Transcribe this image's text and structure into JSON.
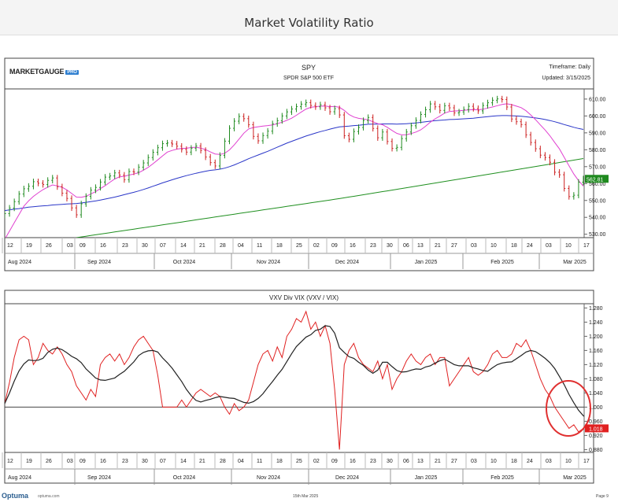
{
  "page_title": "Market Volatility Ratio",
  "logo": {
    "text": "MARKETGAUGE",
    "badge": "PRO"
  },
  "footer": {
    "brand": "Optuma",
    "url": "optuma.com",
    "date": "15th Mar 2025",
    "page": "Page 9"
  },
  "chart_data": [
    {
      "type": "ohlc",
      "title": "SPY",
      "subtitle": "SPDR S&P 500 ETF",
      "timeframe": "Timeframe: Daily",
      "updated": "Updated: 3/15/2025",
      "last_value_label": "562.81",
      "ylim": [
        528,
        616
      ],
      "y_ticks": [
        610,
        600,
        590,
        580,
        570,
        560,
        550,
        540,
        530
      ],
      "y_tick_labels": [
        "610.00",
        "600.00",
        "590.00",
        "580.00",
        "570.00",
        "560.00",
        "550.00",
        "540.00",
        "530.00"
      ],
      "close": [
        542.2,
        545.5,
        549.3,
        553.8,
        556.9,
        558.4,
        561.1,
        560.2,
        559.4,
        561.9,
        563.3,
        558.1,
        554.3,
        551.2,
        545.6,
        541.5,
        548.0,
        552.4,
        556.1,
        557.7,
        560.9,
        563.8,
        564.5,
        566.3,
        565.0,
        562.3,
        567.1,
        566.8,
        569.7,
        572.2,
        575.4,
        578.5,
        581.2,
        583.6,
        584.0,
        583.4,
        582.1,
        580.2,
        578.6,
        580.9,
        582.2,
        579.6,
        575.7,
        572.4,
        570.4,
        576.7,
        585.1,
        592.7,
        596.9,
        599.7,
        598.4,
        594.8,
        587.9,
        585.3,
        588.4,
        591.0,
        595.4,
        597.2,
        600.0,
        602.4,
        604.1,
        605.5,
        607.0,
        607.9,
        606.2,
        605.4,
        606.6,
        604.8,
        602.5,
        604.3,
        600.6,
        588.3,
        586.2,
        590.8,
        593.2,
        597.3,
        599.1,
        592.6,
        587.1,
        590.5,
        584.9,
        580.8,
        581.4,
        586.6,
        590.5,
        594.2,
        597.4,
        600.9,
        603.7,
        607.1,
        605.4,
        603.3,
        606.0,
        604.8,
        601.8,
        602.4,
        603.8,
        605.7,
        604.4,
        603.0,
        606.2,
        607.8,
        609.3,
        610.1,
        609.7,
        605.3,
        598.2,
        596.6,
        594.9,
        588.8,
        584.3,
        580.6,
        576.8,
        575.4,
        572.6,
        566.7,
        565.2,
        557.1,
        552.3,
        553.1,
        560.8,
        562.8
      ],
      "sma_fast": [
        527.0,
        531.9,
        536.8,
        541.7,
        546.6,
        549.8,
        552.4,
        554.5,
        556.4,
        557.9,
        559.2,
        558.6,
        557.8,
        556.2,
        554.1,
        552.0,
        551.9,
        552.5,
        553.8,
        555.2,
        557.0,
        558.8,
        560.8,
        562.7,
        564.0,
        564.3,
        565.0,
        565.6,
        566.4,
        567.9,
        569.6,
        571.7,
        574.0,
        576.4,
        578.6,
        579.6,
        580.4,
        580.8,
        580.9,
        581.3,
        581.5,
        581.0,
        580.1,
        578.7,
        577.5,
        577.2,
        577.9,
        579.9,
        582.9,
        586.3,
        589.8,
        592.3,
        593.2,
        593.6,
        594.0,
        594.3,
        594.7,
        595.4,
        596.3,
        597.4,
        598.7,
        600.4,
        602.3,
        604.1,
        605.1,
        605.5,
        605.8,
        605.9,
        605.5,
        605.6,
        605.1,
        603.3,
        600.8,
        599.4,
        598.6,
        598.2,
        597.7,
        596.6,
        595.4,
        594.8,
        593.3,
        591.4,
        589.7,
        588.8,
        588.9,
        589.6,
        590.5,
        591.8,
        593.9,
        596.3,
        598.3,
        599.9,
        601.7,
        602.6,
        602.9,
        603.1,
        603.3,
        603.6,
        603.7,
        603.6,
        604.0,
        604.7,
        605.3,
        606.1,
        606.8,
        607.2,
        606.7,
        605.8,
        604.9,
        603.1,
        600.6,
        597.8,
        594.7,
        591.7,
        588.3,
        584.3,
        580.5,
        575.5,
        570.5,
        565.6,
        561.7,
        558.5
      ],
      "sma_mid": [
        544.0,
        544.4,
        544.9,
        545.2,
        545.6,
        546.0,
        546.3,
        546.6,
        546.8,
        547.0,
        547.3,
        547.5,
        547.7,
        547.9,
        548.0,
        548.2,
        548.5,
        548.9,
        549.3,
        549.7,
        550.2,
        550.8,
        551.4,
        552.0,
        552.7,
        553.4,
        554.1,
        554.8,
        555.6,
        556.5,
        557.4,
        558.4,
        559.4,
        560.4,
        561.3,
        562.2,
        563.1,
        563.9,
        564.7,
        565.4,
        566.1,
        566.7,
        567.3,
        567.8,
        568.1,
        568.5,
        569.1,
        570.0,
        571.0,
        572.2,
        573.4,
        574.7,
        575.8,
        576.9,
        578.0,
        579.1,
        580.3,
        581.5,
        582.7,
        583.9,
        585.0,
        586.0,
        587.1,
        588.1,
        589.0,
        589.9,
        590.7,
        591.4,
        592.2,
        592.9,
        593.5,
        593.8,
        594.0,
        594.3,
        594.5,
        594.8,
        595.1,
        595.2,
        595.2,
        595.3,
        595.3,
        595.3,
        595.2,
        595.3,
        595.4,
        595.6,
        595.9,
        596.2,
        596.6,
        596.9,
        597.2,
        597.4,
        597.6,
        597.9,
        598.0,
        598.1,
        598.3,
        598.5,
        598.7,
        599.0,
        599.3,
        599.6,
        599.9,
        600.1,
        600.2,
        600.2,
        600.1,
        600.0,
        599.8,
        599.5,
        599.2,
        598.8,
        598.4,
        597.9,
        597.3,
        596.6,
        595.8,
        594.9,
        594.1,
        593.3,
        592.6,
        592.0
      ],
      "sma_slow": [
        null,
        null,
        null,
        null,
        null,
        null,
        null,
        null,
        null,
        null,
        null,
        null,
        null,
        null,
        null,
        null,
        null,
        null,
        null,
        null,
        null,
        null,
        null,
        null,
        null,
        null,
        null,
        null,
        null,
        null,
        null,
        null,
        null,
        null,
        null,
        null,
        null,
        null,
        null,
        null,
        null,
        null,
        null,
        null,
        null,
        null,
        null,
        null,
        null,
        null,
        null,
        null,
        null,
        null,
        null,
        null,
        null,
        null,
        null,
        null,
        null,
        null,
        null,
        null,
        null,
        null,
        null,
        null,
        null,
        null,
        null,
        null,
        null,
        null,
        null,
        null,
        null,
        null,
        null,
        null,
        null,
        null,
        null,
        null,
        null,
        null,
        null,
        null,
        null,
        null,
        null,
        null,
        null,
        null,
        null,
        null,
        null,
        null,
        null,
        null,
        null,
        null,
        null,
        null,
        null,
        null,
        null,
        null,
        null,
        null,
        null,
        null,
        null,
        null,
        null,
        null,
        null,
        null,
        null,
        null,
        null,
        null,
        null,
        null
      ]
    },
    {
      "type": "line",
      "title": "VXV Div VIX (VXV / VIX)",
      "last_value_label": "1.018",
      "ylim": [
        0.872,
        1.292
      ],
      "y_ticks": [
        1.28,
        1.24,
        1.2,
        1.16,
        1.12,
        1.08,
        1.04,
        1.0,
        0.96,
        0.92,
        0.88
      ],
      "y_tick_labels": [
        "1.280",
        "1.240",
        "1.200",
        "1.160",
        "1.120",
        "1.080",
        "1.040",
        "1.000",
        "0.960",
        "0.920",
        "0.880"
      ],
      "reference_line": 1.0,
      "ratio": [
        1.01,
        1.07,
        1.14,
        1.19,
        1.2,
        1.19,
        1.12,
        1.14,
        1.18,
        1.16,
        1.15,
        1.17,
        1.15,
        1.12,
        1.1,
        1.06,
        1.04,
        1.02,
        1.05,
        1.03,
        1.12,
        1.14,
        1.15,
        1.13,
        1.15,
        1.12,
        1.14,
        1.17,
        1.19,
        1.2,
        1.18,
        1.16,
        1.09,
        1.0,
        1.0,
        1.0,
        1.0,
        1.02,
        1.0,
        1.02,
        1.04,
        1.05,
        1.04,
        1.03,
        1.04,
        1.03,
        1.0,
        0.98,
        1.01,
        0.99,
        1.0,
        1.02,
        1.07,
        1.12,
        1.15,
        1.16,
        1.13,
        1.17,
        1.14,
        1.2,
        1.22,
        1.25,
        1.24,
        1.27,
        1.22,
        1.24,
        1.2,
        1.23,
        1.18,
        1.05,
        0.88,
        1.12,
        1.16,
        1.18,
        1.14,
        1.12,
        1.11,
        1.1,
        1.13,
        1.08,
        1.12,
        1.05,
        1.08,
        1.1,
        1.13,
        1.15,
        1.13,
        1.12,
        1.14,
        1.15,
        1.12,
        1.14,
        1.14,
        1.06,
        1.08,
        1.1,
        1.12,
        1.14,
        1.1,
        1.09,
        1.1,
        1.12,
        1.15,
        1.16,
        1.14,
        1.14,
        1.15,
        1.18,
        1.17,
        1.19,
        1.16,
        1.12,
        1.08,
        1.05,
        1.03,
        1.0,
        0.98,
        0.96,
        0.94,
        0.95,
        0.93,
        0.94,
        0.97,
        1.02
      ],
      "smooth": [
        null,
        null,
        null,
        null,
        null,
        null,
        null,
        null,
        null,
        null,
        null,
        null,
        null,
        null,
        null,
        null,
        null,
        null,
        null,
        null,
        null,
        null,
        null,
        null,
        null,
        null,
        null,
        null,
        null,
        null,
        null,
        null,
        null,
        null,
        null,
        null,
        null,
        null,
        null,
        null,
        null,
        null,
        null,
        null,
        null,
        null,
        null,
        null,
        null,
        null,
        null,
        null,
        null,
        null,
        null,
        null,
        null,
        null,
        null,
        null,
        null,
        null,
        null,
        null,
        null,
        null,
        null,
        null,
        null,
        null,
        null,
        null,
        null,
        null,
        null,
        null,
        null,
        null,
        null,
        null,
        null,
        null,
        null,
        null,
        null,
        null,
        null,
        null,
        null,
        null,
        null,
        null,
        null,
        null,
        null,
        null,
        null,
        null,
        null,
        null,
        null,
        null,
        null,
        null,
        null,
        null,
        null,
        null,
        null,
        null,
        null,
        null,
        null,
        null,
        null,
        null,
        null,
        null,
        null,
        null,
        null,
        null,
        null,
        null
      ]
    }
  ],
  "x_axis": {
    "day_labels": [
      "12",
      "19",
      "26",
      "03",
      "09",
      "16",
      "23",
      "30",
      "07",
      "14",
      "21",
      "28",
      "04",
      "11",
      "18",
      "25",
      "02",
      "09",
      "16",
      "23",
      "30",
      "06",
      "13",
      "21",
      "27",
      "03",
      "10",
      "18",
      "24",
      "03",
      "10",
      "17"
    ],
    "month_labels": [
      "Aug 2024",
      "Sep 2024",
      "Oct 2024",
      "Nov 2024",
      "Dec 2024",
      "Jan 2025",
      "Feb 2025",
      "Mar 2025"
    ]
  },
  "colors": {
    "spy_up": "#1f8a1f",
    "spy_down": "#cc1f1f",
    "sma_fast": "#e040d0",
    "sma_mid": "#2a36c8",
    "sma_slow": "#1f8f1f",
    "ratio_line": "#e02020",
    "smooth_line": "#222222",
    "highlight_circle": "#e03030",
    "last_label_spy_bg": "#1f8a1f",
    "last_label_ratio_bg": "#e02020"
  }
}
